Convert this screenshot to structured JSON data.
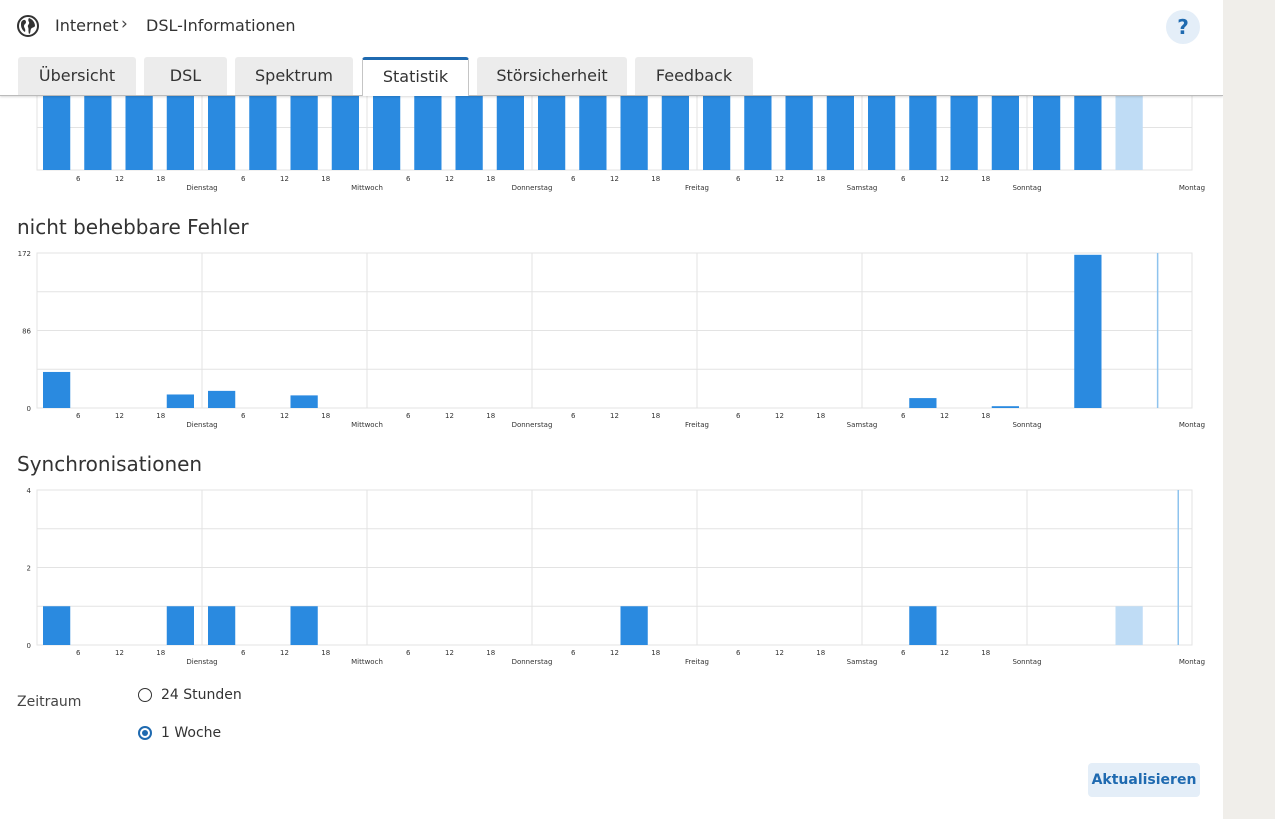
{
  "breadcrumb": {
    "first": "Internet",
    "separator": "›",
    "second": "DSL-Informationen"
  },
  "help_label": "?",
  "tabs": [
    {
      "label": "Übersicht",
      "active": false
    },
    {
      "label": "DSL",
      "active": false
    },
    {
      "label": "Spektrum",
      "active": false
    },
    {
      "label": "Statistik",
      "active": true
    },
    {
      "label": "Störsicherheit",
      "active": false
    },
    {
      "label": "Feedback",
      "active": false
    }
  ],
  "icons": {
    "globe": "globe-icon",
    "chevron": "chevron-right-icon"
  },
  "colors": {
    "bar": "#2a8ae0",
    "bar_light": "#bfdcf5",
    "accent": "#1f6ab0",
    "grid": "#e3e3e3"
  },
  "axis": {
    "days": [
      "Dienstag",
      "Mittwoch",
      "Donnerstag",
      "Freitag",
      "Samstag",
      "Sonntag",
      "Montag"
    ],
    "hour_ticks": [
      "6",
      "12",
      "18"
    ]
  },
  "chart_data": [
    {
      "type": "bar",
      "title": "",
      "x_unit": "hours",
      "x_range": [
        0,
        168
      ],
      "bin_hours": 6,
      "yticks": [
        "0"
      ],
      "ylim": [
        0,
        10
      ],
      "bar_bins": [
        1,
        2,
        3,
        4,
        5,
        6,
        7,
        8,
        9,
        10,
        11,
        12,
        13,
        14,
        15,
        16,
        17,
        18,
        19,
        20,
        21,
        22,
        23,
        24,
        25,
        26
      ],
      "values": [
        10,
        10,
        10,
        10,
        10,
        10,
        10,
        10,
        10,
        10,
        10,
        10,
        10,
        10,
        10,
        10,
        10,
        10,
        10,
        10,
        10,
        10,
        10,
        10,
        10,
        10
      ],
      "highlight_bin": 27,
      "highlight_value": 10,
      "now_line_hour": null
    },
    {
      "type": "bar",
      "title": "nicht behebbare Fehler",
      "x_unit": "hours",
      "x_range": [
        0,
        168
      ],
      "bin_hours": 6,
      "yticks": [
        "0",
        "86",
        "172"
      ],
      "ylim": [
        0,
        172
      ],
      "bar_bins": [
        1,
        4,
        5,
        7,
        22,
        24,
        26
      ],
      "values": [
        40,
        15,
        19,
        14,
        11,
        2,
        170
      ],
      "highlight_bin": null,
      "highlight_value": null,
      "now_line_hour": 163
    },
    {
      "type": "bar",
      "title": "Synchronisationen",
      "x_unit": "hours",
      "x_range": [
        0,
        168
      ],
      "bin_hours": 6,
      "yticks": [
        "0",
        "2",
        "4"
      ],
      "ylim": [
        0,
        4
      ],
      "bar_bins": [
        1,
        4,
        5,
        7,
        15,
        22
      ],
      "values": [
        1,
        1,
        1,
        1,
        1,
        1
      ],
      "highlight_bin": 27,
      "highlight_value": 1,
      "now_line_hour": 166
    }
  ],
  "period": {
    "label": "Zeitraum",
    "options": [
      {
        "label": "24 Stunden",
        "checked": false
      },
      {
        "label": "1 Woche",
        "checked": true
      }
    ]
  },
  "refresh_label": "Aktualisieren"
}
